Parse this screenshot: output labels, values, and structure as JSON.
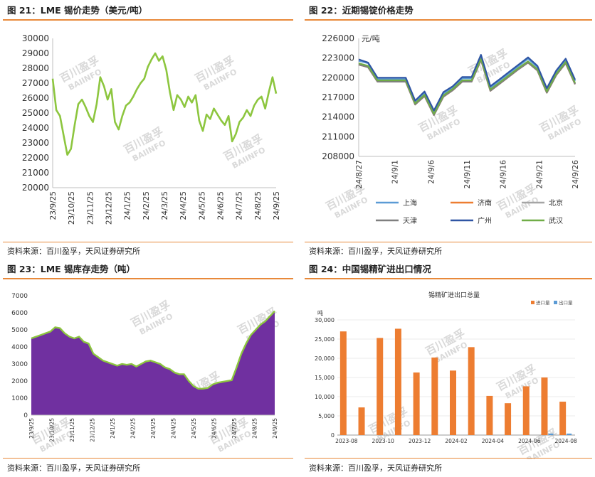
{
  "source_label": "资料来源：百川盈孚，天风证券研究所",
  "watermark": {
    "cn": "百川盈孚",
    "en": "BAIINFO"
  },
  "panels": [
    {
      "title": "图 21：LME 锡价走势（美元/吨）"
    },
    {
      "title": "图 22：近期锡锭价格走势"
    },
    {
      "title": "图 23：LME 锡库存走势（吨）"
    },
    {
      "title": "图 24：中国锡精矿进出口情况"
    }
  ],
  "chart_data": [
    {
      "type": "line",
      "title": "",
      "ylim": [
        20000,
        30000
      ],
      "yticks": [
        20000,
        21000,
        22000,
        23000,
        24000,
        25000,
        26000,
        27000,
        28000,
        29000,
        30000
      ],
      "xticks": [
        "23/9/25",
        "23/10/25",
        "23/11/25",
        "23/12/25",
        "24/1/25",
        "24/2/25",
        "24/3/25",
        "24/4/25",
        "24/5/25",
        "24/6/25",
        "24/7/25",
        "24/8/25",
        "24/9/25"
      ],
      "color": "#8dc63f",
      "series": [
        {
          "values": [
            27300,
            25200,
            24800,
            23500,
            22200,
            22600,
            24200,
            25600,
            25900,
            25400,
            24800,
            24400,
            25600,
            27400,
            26800,
            25900,
            26600,
            24400,
            23900,
            24800,
            25500,
            25700,
            26100,
            26600,
            27000,
            27300,
            28100,
            28600,
            29000,
            28500,
            28800,
            27900,
            26400,
            25200,
            26200,
            25900,
            25400,
            26100,
            25700,
            26200,
            24500,
            23800,
            24900,
            24600,
            25300,
            24900,
            24500,
            24200,
            24800,
            23100,
            23600,
            24400,
            24700,
            25200,
            24800,
            25500,
            25900,
            26100,
            25300,
            26400,
            27400,
            26300
          ]
        }
      ]
    },
    {
      "type": "line",
      "ylabel": "元/吨",
      "ylim": [
        208000,
        226000
      ],
      "yticks": [
        208000,
        211000,
        214000,
        217000,
        220000,
        223000,
        226000
      ],
      "xticks": [
        "24/8/27",
        "24/9/1",
        "24/9/6",
        "24/9/11",
        "24/9/16",
        "24/9/21",
        "24/9/26"
      ],
      "x": [
        0,
        1,
        2,
        3,
        4,
        5,
        6,
        7,
        8,
        9,
        10,
        11,
        12,
        13,
        14,
        15,
        16,
        17,
        18,
        19,
        20,
        21,
        22,
        23
      ],
      "series": [
        {
          "name": "上海",
          "color": "#5b9bd5",
          "values": [
            222600,
            222200,
            219800,
            219800,
            219800,
            219800,
            216300,
            217700,
            214800,
            217600,
            218500,
            219900,
            219900,
            223300,
            218500,
            219600,
            220700,
            221800,
            222900,
            221600,
            218200,
            220900,
            222700,
            219500
          ]
        },
        {
          "name": "济南",
          "color": "#ed7d31",
          "values": [
            222000,
            221600,
            219400,
            219400,
            219400,
            219400,
            215900,
            217200,
            214300,
            217100,
            218100,
            219400,
            219400,
            222700,
            218000,
            219100,
            220200,
            221300,
            222300,
            221100,
            217700,
            220400,
            222200,
            219000
          ]
        },
        {
          "name": "北京",
          "color": "#a5a5a5",
          "values": [
            222100,
            221700,
            219500,
            219500,
            219500,
            219500,
            216000,
            217300,
            214400,
            217200,
            218200,
            219500,
            219500,
            222800,
            218100,
            219200,
            220300,
            221400,
            222400,
            221200,
            217800,
            220500,
            222300,
            219100
          ]
        },
        {
          "name": "天津",
          "color": "#7f7f7f",
          "values": [
            222000,
            221600,
            219400,
            219400,
            219400,
            219400,
            215900,
            217200,
            214300,
            217100,
            218100,
            219400,
            219400,
            222700,
            218000,
            219100,
            220200,
            221300,
            222300,
            221100,
            217700,
            220400,
            222200,
            219000
          ]
        },
        {
          "name": "广州",
          "color": "#2f55a4",
          "values": [
            222800,
            222300,
            220000,
            220000,
            220000,
            220000,
            216500,
            217900,
            215000,
            217800,
            218700,
            220100,
            220100,
            223500,
            218700,
            219800,
            220900,
            222000,
            223100,
            221800,
            218400,
            221100,
            222900,
            219700
          ]
        },
        {
          "name": "武汉",
          "color": "#70ad47",
          "values": [
            222200,
            221800,
            219600,
            219600,
            219600,
            219600,
            216100,
            217400,
            214500,
            217300,
            218300,
            219600,
            219600,
            222900,
            218200,
            219300,
            220400,
            221500,
            222500,
            221300,
            217900,
            220600,
            222400,
            219200
          ]
        }
      ]
    },
    {
      "type": "area",
      "ylim": [
        0,
        7000
      ],
      "yticks": [
        0,
        1000,
        2000,
        3000,
        4000,
        5000,
        6000,
        7000
      ],
      "xticks": [
        "23/9/25",
        "23/10/25",
        "23/11/25",
        "23/12/25",
        "24/1/25",
        "24/2/25",
        "24/3/25",
        "24/4/25",
        "24/5/25",
        "24/6/25",
        "24/7/25",
        "24/8/25",
        "24/9/25"
      ],
      "fill": "#7030a0",
      "line": "#8dc63f",
      "series": [
        {
          "values": [
            4500,
            4600,
            4700,
            4800,
            4900,
            5150,
            5100,
            4800,
            4600,
            4500,
            4600,
            4300,
            4200,
            3600,
            3400,
            3200,
            3100,
            3000,
            2900,
            3000,
            2950,
            3000,
            2850,
            3000,
            3150,
            3200,
            3100,
            3000,
            2800,
            2700,
            2500,
            2400,
            2400,
            2000,
            1700,
            1550,
            1550,
            1600,
            1800,
            1900,
            1950,
            2000,
            2050,
            2800,
            3600,
            4200,
            4700,
            5000,
            5300,
            5500,
            5800,
            6100
          ]
        }
      ]
    },
    {
      "type": "bar",
      "title": "锡精矿进出口总量",
      "ylabel": "吨",
      "ylim": [
        0,
        30000
      ],
      "yticks": [
        "0",
        "5,000",
        "10,000",
        "15,000",
        "20,000",
        "25,000",
        "30,000"
      ],
      "xticks": [
        "2023-08",
        "2023-10",
        "2023-12",
        "2024-02",
        "2024-04",
        "2024-06",
        "2024-08"
      ],
      "categories": [
        "2023-08",
        "2023-09",
        "2023-10",
        "2023-11",
        "2023-12",
        "2024-01",
        "2024-02",
        "2024-03",
        "2024-04",
        "2024-05",
        "2024-06",
        "2024-07",
        "2024-08"
      ],
      "series": [
        {
          "name": "进口量",
          "color": "#ed7d31",
          "values": [
            27000,
            7200,
            25300,
            27700,
            16300,
            20200,
            16800,
            22900,
            10200,
            8300,
            12700,
            15000,
            8700
          ]
        },
        {
          "name": "出口量",
          "color": "#5b9bd5",
          "values": [
            0,
            0,
            0,
            0,
            0,
            0,
            0,
            0,
            0,
            0,
            0,
            200,
            200
          ]
        }
      ]
    }
  ]
}
